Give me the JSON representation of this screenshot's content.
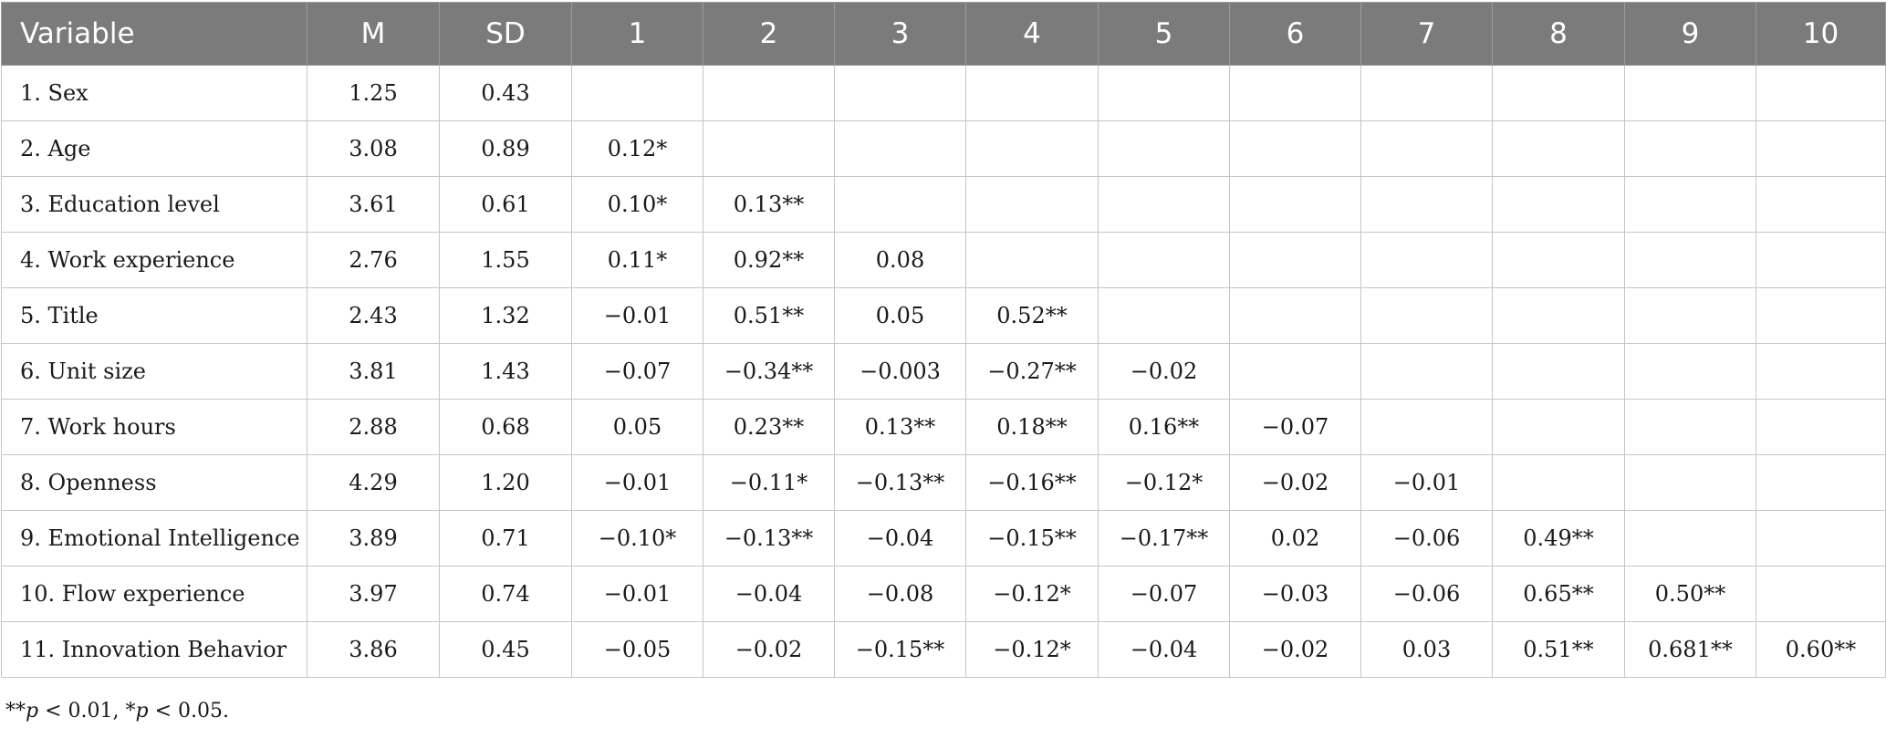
{
  "table": {
    "headers": [
      "Variable",
      "M",
      "SD",
      "1",
      "2",
      "3",
      "4",
      "5",
      "6",
      "7",
      "8",
      "9",
      "10"
    ],
    "rows": [
      [
        "1. Sex",
        "1.25",
        "0.43",
        "",
        "",
        "",
        "",
        "",
        "",
        "",
        "",
        "",
        ""
      ],
      [
        "2. Age",
        "3.08",
        "0.89",
        "0.12*",
        "",
        "",
        "",
        "",
        "",
        "",
        "",
        "",
        ""
      ],
      [
        "3. Education level",
        "3.61",
        "0.61",
        "0.10*",
        "0.13**",
        "",
        "",
        "",
        "",
        "",
        "",
        "",
        ""
      ],
      [
        "4. Work experience",
        "2.76",
        "1.55",
        "0.11*",
        "0.92**",
        "0.08",
        "",
        "",
        "",
        "",
        "",
        "",
        ""
      ],
      [
        "5. Title",
        "2.43",
        "1.32",
        "−0.01",
        "0.51**",
        "0.05",
        "0.52**",
        "",
        "",
        "",
        "",
        "",
        ""
      ],
      [
        "6. Unit size",
        "3.81",
        "1.43",
        "−0.07",
        "−0.34**",
        "−0.003",
        "−0.27**",
        "−0.02",
        "",
        "",
        "",
        "",
        ""
      ],
      [
        "7. Work hours",
        "2.88",
        "0.68",
        "0.05",
        "0.23**",
        "0.13**",
        "0.18**",
        "0.16**",
        "−0.07",
        "",
        "",
        "",
        ""
      ],
      [
        "8. Openness",
        "4.29",
        "1.20",
        "−0.01",
        "−0.11*",
        "−0.13**",
        "−0.16**",
        "−0.12*",
        "−0.02",
        "−0.01",
        "",
        "",
        ""
      ],
      [
        "9. Emotional Intelligence",
        "3.89",
        "0.71",
        "−0.10*",
        "−0.13**",
        "−0.04",
        "−0.15**",
        "−0.17**",
        "0.02",
        "−0.06",
        "0.49**",
        "",
        ""
      ],
      [
        "10. Flow experience",
        "3.97",
        "0.74",
        "−0.01",
        "−0.04",
        "−0.08",
        "−0.12*",
        "−0.07",
        "−0.03",
        "−0.06",
        "0.65**",
        "0.50**",
        ""
      ],
      [
        "11. Innovation Behavior",
        "3.86",
        "0.45",
        "−0.05",
        "−0.02",
        "−0.15**",
        "−0.12*",
        "−0.04",
        "−0.02",
        "0.03",
        "0.51**",
        "0.681**",
        "0.60**"
      ]
    ]
  },
  "note": {
    "stars2": "**",
    "p1": "p",
    "text1": " < 0.01, ",
    "stars1": "*",
    "p2": "p",
    "text2": " < 0.05."
  }
}
